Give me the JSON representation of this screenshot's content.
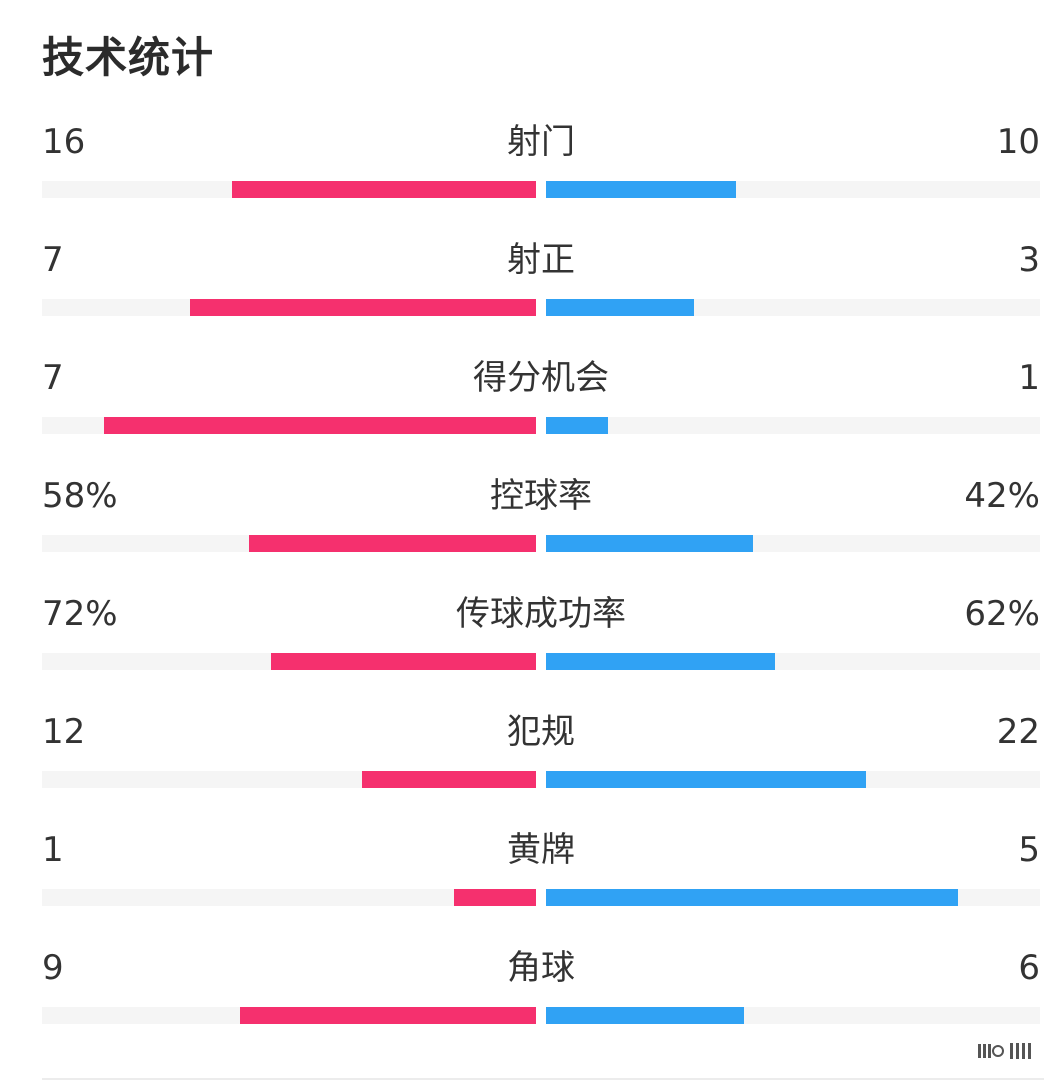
{
  "title": "技术统计",
  "colors": {
    "home": "#f5306e",
    "away": "#30a2f4",
    "track": "#f5f5f5",
    "text": "#333333"
  },
  "stats": [
    {
      "label": "射门",
      "home_display": "16",
      "away_display": "10",
      "home": 16,
      "away": 10
    },
    {
      "label": "射正",
      "home_display": "7",
      "away_display": "3",
      "home": 7,
      "away": 3
    },
    {
      "label": "得分机会",
      "home_display": "7",
      "away_display": "1",
      "home": 7,
      "away": 1
    },
    {
      "label": "控球率",
      "home_display": "58%",
      "away_display": "42%",
      "home": 58,
      "away": 42
    },
    {
      "label": "传球成功率",
      "home_display": "72%",
      "away_display": "62%",
      "home": 72,
      "away": 62
    },
    {
      "label": "犯规",
      "home_display": "12",
      "away_display": "22",
      "home": 12,
      "away": 22
    },
    {
      "label": "黄牌",
      "home_display": "1",
      "away_display": "5",
      "home": 1,
      "away": 5
    },
    {
      "label": "角球",
      "home_display": "9",
      "away_display": "6",
      "home": 9,
      "away": 6
    }
  ],
  "bar_fill": [
    {
      "home": 0.615,
      "away": 0.385
    },
    {
      "home": 0.7,
      "away": 0.3
    },
    {
      "home": 0.875,
      "away": 0.125
    },
    {
      "home": 0.58,
      "away": 0.42
    },
    {
      "home": 0.537,
      "away": 0.463
    },
    {
      "home": 0.353,
      "away": 0.647
    },
    {
      "home": 0.167,
      "away": 0.833
    },
    {
      "home": 0.6,
      "away": 0.4
    }
  ]
}
